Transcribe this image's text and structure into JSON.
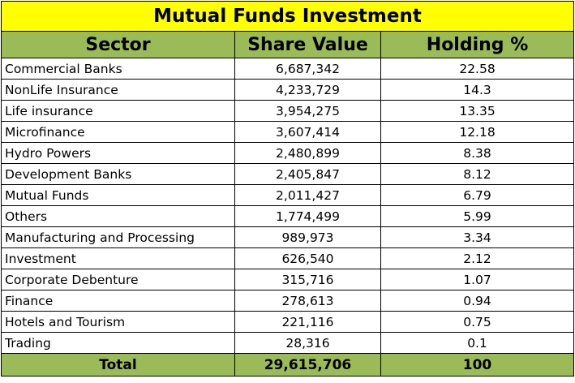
{
  "title": "Mutual Funds Investment",
  "colors": {
    "title_bg": "#ffff00",
    "header_bg": "#9bbb59",
    "total_bg": "#9bbb59"
  },
  "columns": [
    "Sector",
    "Share Value",
    "Holding %"
  ],
  "rows": [
    {
      "sector": "Commercial Banks",
      "share_value": "6,687,342",
      "holding": "22.58"
    },
    {
      "sector": "NonLife Insurance",
      "share_value": "4,233,729",
      "holding": "14.3"
    },
    {
      "sector": "Life insurance",
      "share_value": "3,954,275",
      "holding": "13.35"
    },
    {
      "sector": "Microfinance",
      "share_value": "3,607,414",
      "holding": "12.18"
    },
    {
      "sector": "Hydro Powers",
      "share_value": "2,480,899",
      "holding": "8.38"
    },
    {
      "sector": "Development Banks",
      "share_value": "2,405,847",
      "holding": "8.12"
    },
    {
      "sector": "Mutual Funds",
      "share_value": "2,011,427",
      "holding": "6.79"
    },
    {
      "sector": "Others",
      "share_value": "1,774,499",
      "holding": "5.99"
    },
    {
      "sector": "Manufacturing and Processing",
      "share_value": "989,973",
      "holding": "3.34"
    },
    {
      "sector": "Investment",
      "share_value": "626,540",
      "holding": "2.12"
    },
    {
      "sector": "Corporate  Debenture",
      "share_value": "315,716",
      "holding": "1.07"
    },
    {
      "sector": "Finance",
      "share_value": "278,613",
      "holding": "0.94"
    },
    {
      "sector": "Hotels and Tourism",
      "share_value": "221,116",
      "holding": "0.75"
    },
    {
      "sector": "Trading",
      "share_value": "28,316",
      "holding": "0.1"
    }
  ],
  "total": {
    "label": "Total",
    "share_value": "29,615,706",
    "holding": "100"
  }
}
